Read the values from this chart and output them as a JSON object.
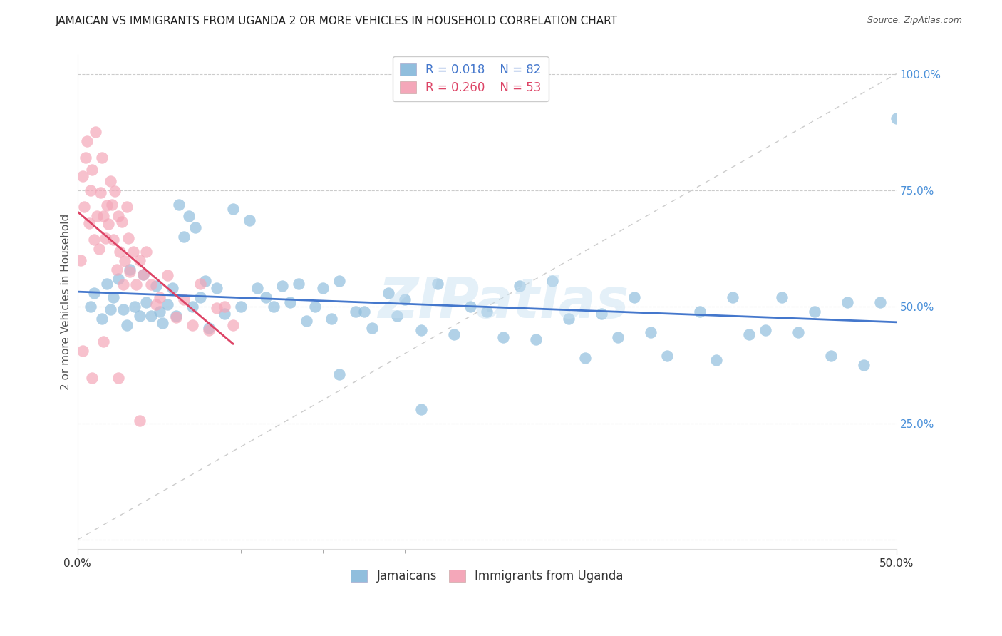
{
  "title": "JAMAICAN VS IMMIGRANTS FROM UGANDA 2 OR MORE VEHICLES IN HOUSEHOLD CORRELATION CHART",
  "source": "Source: ZipAtlas.com",
  "ylabel": "2 or more Vehicles in Household",
  "xmin": 0.0,
  "xmax": 0.5,
  "ymin": 0.0,
  "ymax": 1.04,
  "yticks": [
    0.0,
    0.25,
    0.5,
    0.75,
    1.0
  ],
  "ytick_labels": [
    "",
    "25.0%",
    "50.0%",
    "75.0%",
    "100.0%"
  ],
  "legend_r_blue": "R = 0.018",
  "legend_n_blue": "N = 82",
  "legend_r_pink": "R = 0.260",
  "legend_n_pink": "N = 53",
  "watermark": "ZIPatlas",
  "blue_color": "#90bedd",
  "pink_color": "#f4a7b9",
  "blue_line_color": "#4477cc",
  "pink_line_color": "#dd4466",
  "jamaicans_label": "Jamaicans",
  "uganda_label": "Immigrants from Uganda",
  "blue_scatter_x": [
    0.008,
    0.01,
    0.015,
    0.018,
    0.02,
    0.022,
    0.025,
    0.028,
    0.03,
    0.032,
    0.035,
    0.038,
    0.04,
    0.042,
    0.045,
    0.048,
    0.05,
    0.052,
    0.055,
    0.058,
    0.06,
    0.062,
    0.065,
    0.068,
    0.07,
    0.072,
    0.075,
    0.078,
    0.08,
    0.085,
    0.09,
    0.095,
    0.1,
    0.105,
    0.11,
    0.115,
    0.12,
    0.125,
    0.13,
    0.135,
    0.14,
    0.145,
    0.15,
    0.155,
    0.16,
    0.17,
    0.175,
    0.18,
    0.19,
    0.195,
    0.2,
    0.21,
    0.22,
    0.23,
    0.24,
    0.25,
    0.26,
    0.27,
    0.28,
    0.29,
    0.3,
    0.31,
    0.32,
    0.33,
    0.34,
    0.35,
    0.36,
    0.38,
    0.39,
    0.4,
    0.41,
    0.42,
    0.43,
    0.44,
    0.45,
    0.46,
    0.47,
    0.48,
    0.49,
    0.5,
    0.16,
    0.21
  ],
  "blue_scatter_y": [
    0.5,
    0.53,
    0.475,
    0.55,
    0.495,
    0.52,
    0.56,
    0.495,
    0.46,
    0.58,
    0.5,
    0.48,
    0.57,
    0.51,
    0.48,
    0.545,
    0.49,
    0.465,
    0.505,
    0.54,
    0.48,
    0.72,
    0.65,
    0.695,
    0.5,
    0.67,
    0.52,
    0.555,
    0.455,
    0.54,
    0.485,
    0.71,
    0.5,
    0.685,
    0.54,
    0.52,
    0.5,
    0.545,
    0.51,
    0.55,
    0.47,
    0.5,
    0.54,
    0.475,
    0.555,
    0.49,
    0.49,
    0.455,
    0.53,
    0.48,
    0.515,
    0.45,
    0.55,
    0.44,
    0.5,
    0.49,
    0.435,
    0.545,
    0.43,
    0.555,
    0.475,
    0.39,
    0.485,
    0.435,
    0.52,
    0.445,
    0.395,
    0.49,
    0.385,
    0.52,
    0.44,
    0.45,
    0.52,
    0.445,
    0.49,
    0.395,
    0.51,
    0.375,
    0.51,
    0.905,
    0.355,
    0.28
  ],
  "pink_scatter_x": [
    0.002,
    0.003,
    0.004,
    0.005,
    0.006,
    0.007,
    0.008,
    0.009,
    0.01,
    0.011,
    0.012,
    0.013,
    0.014,
    0.015,
    0.016,
    0.017,
    0.018,
    0.019,
    0.02,
    0.021,
    0.022,
    0.023,
    0.024,
    0.025,
    0.026,
    0.027,
    0.028,
    0.029,
    0.03,
    0.031,
    0.032,
    0.034,
    0.036,
    0.038,
    0.04,
    0.042,
    0.045,
    0.048,
    0.05,
    0.055,
    0.06,
    0.065,
    0.07,
    0.075,
    0.08,
    0.085,
    0.09,
    0.095,
    0.003,
    0.009,
    0.016,
    0.025,
    0.038
  ],
  "pink_scatter_y": [
    0.6,
    0.78,
    0.715,
    0.82,
    0.855,
    0.68,
    0.75,
    0.795,
    0.645,
    0.875,
    0.695,
    0.625,
    0.745,
    0.82,
    0.695,
    0.648,
    0.718,
    0.678,
    0.77,
    0.72,
    0.645,
    0.748,
    0.58,
    0.695,
    0.618,
    0.682,
    0.548,
    0.598,
    0.715,
    0.648,
    0.575,
    0.618,
    0.548,
    0.6,
    0.57,
    0.618,
    0.548,
    0.505,
    0.52,
    0.568,
    0.478,
    0.515,
    0.46,
    0.55,
    0.45,
    0.498,
    0.5,
    0.46,
    0.405,
    0.348,
    0.425,
    0.348,
    0.255
  ]
}
